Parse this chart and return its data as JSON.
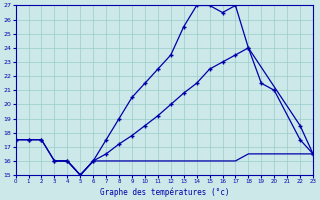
{
  "xlabel": "Graphe des températures (°c)",
  "bg_color": "#cce8e8",
  "line_color": "#0000aa",
  "grid_color": "#99cccc",
  "xlim": [
    0,
    23
  ],
  "ylim": [
    15,
    27
  ],
  "xticks": [
    0,
    1,
    2,
    3,
    4,
    5,
    6,
    7,
    8,
    9,
    10,
    11,
    12,
    13,
    14,
    15,
    16,
    17,
    18,
    19,
    20,
    21,
    22,
    23
  ],
  "yticks": [
    15,
    16,
    17,
    18,
    19,
    20,
    21,
    22,
    23,
    24,
    25,
    26,
    27
  ],
  "line1_x": [
    0,
    1,
    2,
    3,
    4,
    5,
    6,
    7,
    8,
    9,
    10,
    11,
    12,
    13,
    14,
    15,
    16,
    17,
    18,
    22,
    23
  ],
  "line1_y": [
    17.5,
    17.5,
    17.5,
    16.0,
    16.0,
    15.0,
    16.0,
    17.5,
    19.0,
    20.5,
    21.5,
    22.5,
    23.5,
    25.5,
    27.0,
    27.0,
    26.5,
    27.0,
    24.0,
    18.5,
    16.5
  ],
  "line2_x": [
    0,
    1,
    2,
    3,
    4,
    5,
    6,
    7,
    8,
    9,
    10,
    11,
    12,
    13,
    14,
    15,
    16,
    17,
    18,
    19,
    20,
    22,
    23
  ],
  "line2_y": [
    17.5,
    17.5,
    17.5,
    16.0,
    16.0,
    15.0,
    16.0,
    16.5,
    17.2,
    17.8,
    18.5,
    19.2,
    20.0,
    20.8,
    21.5,
    22.5,
    23.0,
    23.5,
    24.0,
    21.5,
    21.0,
    17.5,
    16.5
  ],
  "line3_x": [
    3,
    4,
    5,
    6,
    7,
    8,
    9,
    10,
    11,
    12,
    13,
    14,
    15,
    16,
    17,
    18,
    19,
    20,
    21,
    22,
    23
  ],
  "line3_y": [
    16.0,
    16.0,
    15.0,
    16.0,
    16.0,
    16.0,
    16.0,
    16.0,
    16.0,
    16.0,
    16.0,
    16.0,
    16.0,
    16.0,
    16.0,
    16.5,
    16.5,
    16.5,
    16.5,
    16.5,
    16.5
  ]
}
